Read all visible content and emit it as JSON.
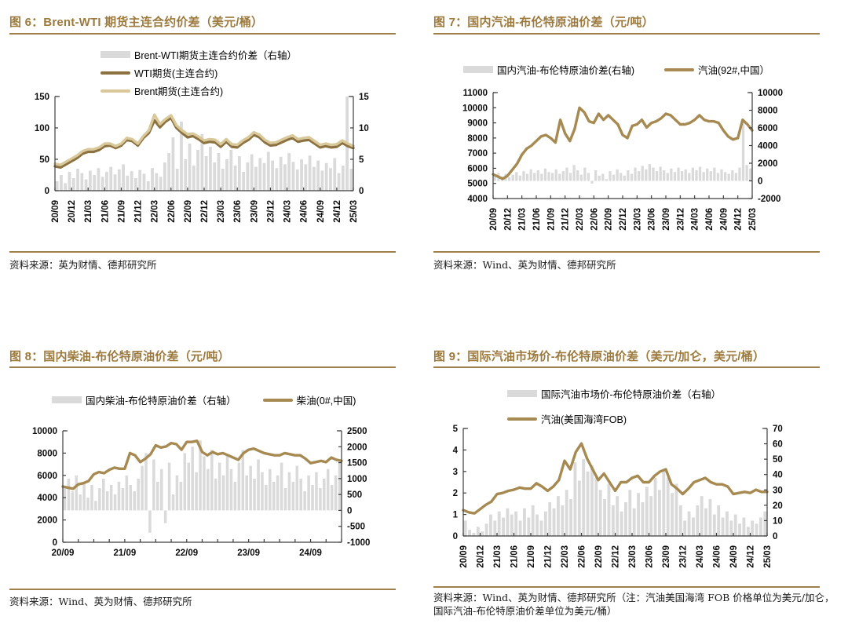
{
  "page": {
    "background": "#ffffff",
    "accent_color": "#9c7a3e",
    "bar_color": "#dadada",
    "axis_color": "#3d3d3d"
  },
  "chart_data": [
    {
      "fig": "图6",
      "type": "bar+line",
      "title": "图 6：Brent-WTI 期货主连合约价差（美元/桶）",
      "source": "资料来源：英为财情、德邦研究所",
      "legend_items": [
        {
          "type": "bar",
          "color": "#dadada",
          "label": "Brent-WTI期货主连合约价差（右轴）"
        },
        {
          "type": "line",
          "color": "#8c7240",
          "label": "WTI期货(主连合约)"
        },
        {
          "type": "line",
          "color": "#d8c89a",
          "label": "Brent期货(主连合约)"
        }
      ],
      "left_axis": {
        "min": 0,
        "max": 150,
        "ticks": [
          0,
          50,
          100,
          150
        ]
      },
      "right_axis": {
        "min": 0,
        "max": 15,
        "ticks": [
          0,
          5,
          10,
          15
        ]
      },
      "x": {
        "total_months": 54,
        "tick_months": [
          0,
          3,
          6,
          9,
          12,
          15,
          18,
          21,
          24,
          27,
          30,
          33,
          36,
          39,
          42,
          45,
          48,
          51,
          54
        ],
        "label_months": [
          0,
          3,
          6,
          9,
          12,
          15,
          18,
          21,
          24,
          27,
          30,
          33,
          36,
          39,
          42,
          45,
          48,
          51,
          54
        ],
        "labels": [
          "20/09",
          "20/12",
          "21/03",
          "21/06",
          "21/09",
          "21/12",
          "22/03",
          "22/06",
          "22/09",
          "22/12",
          "23/03",
          "23/06",
          "23/09",
          "23/12",
          "24/03",
          "24/06",
          "24/09",
          "24/12",
          "25/03"
        ],
        "rotate": true
      },
      "bars": {
        "label": "Brent-WTI期货主连合约价差（右轴）",
        "axis": "right",
        "values": [
          1.5,
          2.5,
          1.2,
          3.0,
          2.0,
          3.5,
          2.8,
          1.8,
          3.2,
          2.5,
          3.6,
          2.2,
          3.0,
          3.8,
          2.6,
          3.4,
          4.2,
          2.4,
          3.1,
          2.0,
          3.3,
          2.7,
          1.5,
          3.6,
          2.8,
          2.2,
          4.5,
          6.0,
          8.5,
          3.5,
          11.0,
          5.0,
          7.5,
          4.0,
          6.5,
          9.0,
          5.5,
          7.0,
          4.5,
          6.0,
          3.5,
          5.0,
          6.5,
          4.0,
          5.5,
          3.0,
          4.5,
          5.8,
          3.8,
          5.2,
          4.4,
          6.2,
          4.8,
          3.6,
          5.4,
          4.2,
          6.0,
          4.6,
          3.4,
          5.0,
          4.2,
          5.6,
          3.8,
          4.8,
          3.2,
          4.4,
          3.6,
          5.2,
          2.8,
          4.0,
          15.0,
          3.5
        ]
      },
      "lines": [
        {
          "label": "WTI期货(主连合约)",
          "color": "#8c7240",
          "axis": "left",
          "values": [
            39,
            37,
            42,
            47,
            52,
            59,
            62,
            62,
            65,
            71,
            72,
            68,
            72,
            81,
            79,
            72,
            84,
            92,
            112,
            101,
            110,
            116,
            100,
            92,
            85,
            87,
            82,
            76,
            78,
            77,
            70,
            78,
            70,
            69,
            76,
            81,
            89,
            85,
            77,
            72,
            73,
            77,
            81,
            84,
            78,
            80,
            81,
            75,
            69,
            71,
            69,
            70,
            76,
            71,
            68
          ]
        },
        {
          "label": "Brent期货(主连合约)",
          "color": "#d8c89a",
          "axis": "left",
          "values": [
            43,
            41,
            46,
            51,
            56,
            63,
            66,
            66,
            69,
            75,
            75,
            71,
            75,
            84,
            82,
            75,
            87,
            96,
            121,
            106,
            114,
            120,
            104,
            96,
            90,
            91,
            86,
            80,
            82,
            81,
            74,
            82,
            74,
            73,
            80,
            85,
            93,
            89,
            81,
            76,
            77,
            81,
            85,
            88,
            82,
            84,
            85,
            79,
            73,
            75,
            73,
            74,
            80,
            75,
            71
          ]
        }
      ]
    },
    {
      "fig": "图7",
      "type": "bar+line",
      "title": "图 7：国内汽油-布伦特原油价差（元/吨）",
      "source": "资料来源：Wind、英为财情、德邦研究所",
      "legend_items": [
        {
          "type": "bar",
          "color": "#dadada",
          "label": "国内汽油-布伦特原油价差(右轴)"
        },
        {
          "type": "line",
          "color": "#a68a52",
          "label": "汽油(92#,中国）"
        }
      ],
      "left_axis": {
        "min": 4000,
        "max": 11000,
        "ticks": [
          4000,
          5000,
          6000,
          7000,
          8000,
          9000,
          10000,
          11000
        ]
      },
      "right_axis": {
        "min": -2000,
        "max": 10000,
        "ticks": [
          -2000,
          0,
          2000,
          4000,
          6000,
          8000,
          10000
        ]
      },
      "x": {
        "total_months": 54,
        "tick_months": [
          0,
          3,
          6,
          9,
          12,
          15,
          18,
          21,
          24,
          27,
          30,
          33,
          36,
          39,
          42,
          45,
          48,
          51,
          54
        ],
        "label_months": [
          0,
          3,
          6,
          9,
          12,
          15,
          18,
          21,
          24,
          27,
          30,
          33,
          36,
          39,
          42,
          45,
          48,
          51,
          54
        ],
        "labels": [
          "20/09",
          "20/12",
          "21/03",
          "21/06",
          "21/09",
          "21/12",
          "22/03",
          "22/06",
          "22/09",
          "22/12",
          "23/03",
          "23/06",
          "23/09",
          "23/12",
          "24/03",
          "24/06",
          "24/09",
          "24/12",
          "25/03"
        ],
        "rotate": true
      },
      "bars": {
        "label": "国内汽油-布伦特原油价差(右轴)",
        "axis": "right",
        "values": [
          600,
          900,
          500,
          800,
          400,
          700,
          1000,
          600,
          1100,
          800,
          1300,
          900,
          1200,
          800,
          1400,
          1000,
          900,
          1300,
          800,
          1100,
          1500,
          900,
          1800,
          1200,
          700,
          1500,
          900,
          -300,
          1200,
          600,
          800,
          200,
          1100,
          700,
          1300,
          900,
          600,
          1200,
          800,
          1500,
          1100,
          1700,
          1300,
          1900,
          1500,
          1100,
          1600,
          1200,
          900,
          1400,
          1000,
          1500,
          1100,
          1300,
          900,
          1500,
          1200,
          1600,
          1000,
          1400,
          1100,
          1500,
          900,
          1300,
          1000,
          800,
          1200,
          900,
          1500,
          7000,
          1800,
          1400
        ]
      },
      "lines": [
        {
          "label": "汽油(92#,中国）",
          "color": "#a68a52",
          "axis": "left",
          "values": [
            5600,
            5450,
            5300,
            5500,
            5900,
            6300,
            6900,
            7300,
            7500,
            7800,
            8100,
            8200,
            8000,
            7700,
            9200,
            8300,
            7800,
            8600,
            10000,
            9700,
            9100,
            9000,
            9600,
            9200,
            9500,
            9200,
            8900,
            8200,
            8000,
            8800,
            8900,
            9200,
            8700,
            9000,
            9100,
            9300,
            9600,
            9500,
            9200,
            8900,
            8900,
            9000,
            9200,
            9500,
            9200,
            9100,
            9100,
            9000,
            8500,
            8100,
            7900,
            8000,
            9200,
            8900,
            8500
          ]
        }
      ]
    },
    {
      "fig": "图8",
      "type": "bar+line",
      "title": "图 8：国内柴油-布伦特原油价差（元/吨）",
      "source": "资料来源：Wind、英为财情、德邦研究所",
      "legend_items": [
        {
          "type": "bar",
          "color": "#dadada",
          "label": "国内柴油-布伦特原油价差（右轴）"
        },
        {
          "type": "line",
          "color": "#a68a52",
          "label": "柴油(0#,中国)"
        }
      ],
      "left_axis": {
        "min": 0,
        "max": 10000,
        "ticks": [
          0,
          2000,
          4000,
          6000,
          8000,
          10000
        ]
      },
      "right_axis": {
        "min": -1000,
        "max": 2500,
        "ticks": [
          -1000,
          -500,
          0,
          500,
          1000,
          1500,
          2000,
          2500
        ]
      },
      "x": {
        "total_months": 54,
        "tick_months": [
          0,
          3,
          6,
          9,
          12,
          15,
          18,
          21,
          24,
          27,
          30,
          33,
          36,
          39,
          42,
          45,
          48,
          51,
          54
        ],
        "label_months": [
          0,
          12,
          24,
          36,
          48
        ],
        "labels": [
          "20/09",
          "21/09",
          "22/09",
          "23/09",
          "24/09"
        ],
        "rotate": false
      },
      "bars": {
        "label": "国内柴油-布伦特原油价差（右轴）",
        "axis": "right",
        "values": [
          700,
          1000,
          600,
          1100,
          500,
          900,
          400,
          800,
          300,
          700,
          1000,
          600,
          800,
          500,
          900,
          700,
          1100,
          800,
          600,
          1000,
          1400,
          1800,
          -700,
          1600,
          900,
          1300,
          -400,
          1500,
          500,
          1100,
          900,
          1800,
          1500,
          2000,
          1200,
          2200,
          1700,
          1300,
          1900,
          1000,
          1500,
          1100,
          1700,
          1300,
          900,
          1500,
          1900,
          1100,
          1400,
          1000,
          1600,
          1200,
          800,
          1300,
          900,
          1100,
          1500,
          700,
          1200,
          900,
          1400,
          1000,
          600,
          1100,
          800,
          1200,
          700,
          1000,
          1300,
          800,
          1100,
          1600
        ]
      },
      "lines": [
        {
          "label": "柴油(0#,中国)",
          "color": "#a68a52",
          "axis": "left",
          "values": [
            5000,
            4900,
            4800,
            5200,
            5300,
            5500,
            6100,
            6300,
            6200,
            6500,
            6700,
            6600,
            6600,
            8000,
            7800,
            7200,
            7500,
            7900,
            8700,
            8500,
            8600,
            8900,
            8800,
            8300,
            9000,
            9000,
            9100,
            8100,
            7800,
            8100,
            7900,
            8000,
            7800,
            7600,
            7400,
            8000,
            8300,
            8400,
            8200,
            8000,
            7900,
            7800,
            7800,
            8000,
            7900,
            7800,
            7800,
            7500,
            7100,
            7200,
            7300,
            7200,
            7600,
            7400,
            7300
          ]
        }
      ]
    },
    {
      "fig": "图9",
      "type": "bar+line",
      "title": "图 9：国际汽油市场价-布伦特原油价差（美元/加仑，美元/桶）",
      "source": "资料来源：Wind、英为财情、德邦研究所（注：汽油美国海湾 FOB 价格单位为美元/加仑，国际汽油-布伦特原油价差单位为美元/桶）",
      "legend_items": [
        {
          "type": "bar",
          "color": "#dadada",
          "label": "国际汽油市场价-布伦特原油价差（右轴）"
        },
        {
          "type": "line",
          "color": "#a68a52",
          "label": "汽油(美国海湾FOB)"
        }
      ],
      "left_axis": {
        "min": 0,
        "max": 5,
        "ticks": [
          0,
          1,
          2,
          3,
          4,
          5
        ]
      },
      "right_axis": {
        "min": 0,
        "max": 70,
        "ticks": [
          0,
          10,
          20,
          30,
          40,
          50,
          60,
          70
        ]
      },
      "x": {
        "total_months": 54,
        "tick_months": [
          0,
          3,
          6,
          9,
          12,
          15,
          18,
          21,
          24,
          27,
          30,
          33,
          36,
          39,
          42,
          45,
          48,
          51,
          54
        ],
        "label_months": [
          0,
          3,
          6,
          9,
          12,
          15,
          18,
          21,
          24,
          27,
          30,
          33,
          36,
          39,
          42,
          45,
          48,
          51,
          54
        ],
        "labels": [
          "20/09",
          "20/12",
          "21/03",
          "21/06",
          "21/09",
          "21/12",
          "22/03",
          "22/06",
          "22/09",
          "22/12",
          "23/03",
          "23/06",
          "23/09",
          "23/12",
          "24/03",
          "24/06",
          "24/09",
          "24/12",
          "25/03"
        ],
        "rotate": true
      },
      "bars": {
        "label": "国际汽油市场价-布伦特原油价差（右轴）",
        "axis": "right",
        "values": [
          10,
          4,
          2,
          6,
          3,
          8,
          14,
          10,
          16,
          12,
          18,
          14,
          16,
          10,
          18,
          12,
          20,
          14,
          10,
          16,
          22,
          18,
          26,
          20,
          30,
          24,
          48,
          36,
          50,
          42,
          46,
          38,
          30,
          24,
          34,
          20,
          26,
          16,
          22,
          30,
          18,
          28,
          22,
          32,
          26,
          38,
          30,
          42,
          38,
          28,
          34,
          20,
          10,
          16,
          12,
          20,
          26,
          18,
          24,
          14,
          20,
          12,
          16,
          10,
          14,
          8,
          12,
          6,
          10,
          8,
          12,
          16
        ]
      },
      "lines": [
        {
          "label": "汽油(美国海湾FOB)",
          "color": "#a68a52",
          "axis": "left",
          "values": [
            1.2,
            1.1,
            1.05,
            1.25,
            1.45,
            1.6,
            1.95,
            2.0,
            2.1,
            2.15,
            2.25,
            2.2,
            2.2,
            2.45,
            2.3,
            2.1,
            2.3,
            2.6,
            3.5,
            3.1,
            3.9,
            4.3,
            3.6,
            3.1,
            2.6,
            2.9,
            2.5,
            2.1,
            2.5,
            2.5,
            2.7,
            2.8,
            2.5,
            2.5,
            2.8,
            3.0,
            3.1,
            2.4,
            2.2,
            1.95,
            2.2,
            2.5,
            2.6,
            2.7,
            2.5,
            2.4,
            2.4,
            2.3,
            1.95,
            2.0,
            2.05,
            2.0,
            2.15,
            2.05,
            2.05
          ]
        }
      ]
    }
  ]
}
